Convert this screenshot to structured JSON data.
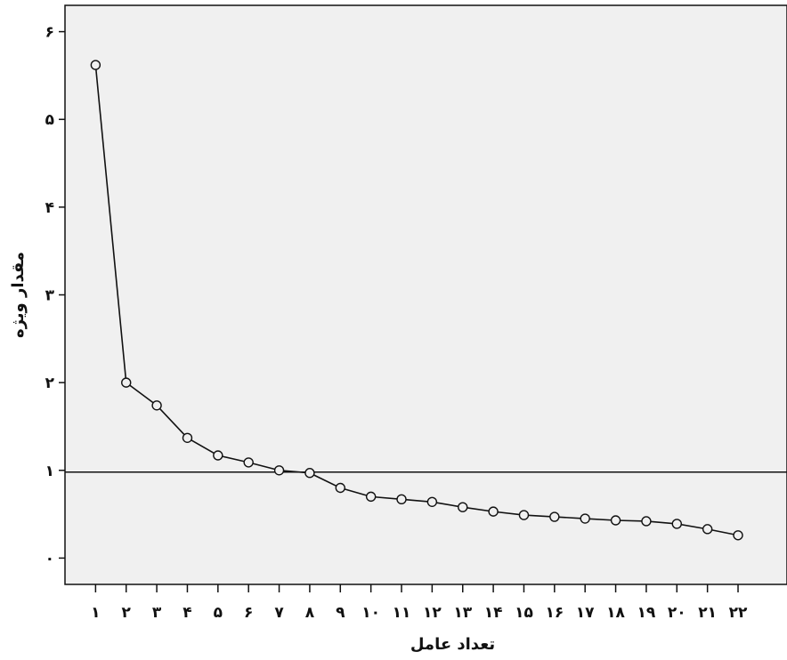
{
  "chart_data": {
    "type": "line",
    "xlabel": "تعداد عامل",
    "ylabel": "مقدار ویژه",
    "x_tick_labels": [
      "۱",
      "۲",
      "۳",
      "۴",
      "۵",
      "۶",
      "۷",
      "۸",
      "۹",
      "۱۰",
      "۱۱",
      "۱۲",
      "۱۳",
      "۱۴",
      "۱۵",
      "۱۶",
      "۱۷",
      "۱۸",
      "۱۹",
      "۲۰",
      "۲۱",
      "۲۲"
    ],
    "y_tick_labels": [
      "۰",
      "۱",
      "۲",
      "۳",
      "۴",
      "۵",
      "۶"
    ],
    "y_ticks": [
      0,
      1,
      2,
      3,
      4,
      5,
      6
    ],
    "xlim": [
      0.0,
      23.6
    ],
    "ylim": [
      -0.3,
      6.3
    ],
    "x": [
      1,
      2,
      3,
      4,
      5,
      6,
      7,
      8,
      9,
      10,
      11,
      12,
      13,
      14,
      15,
      16,
      17,
      18,
      19,
      20,
      21,
      22
    ],
    "series": [
      {
        "values": [
          5.62,
          2.0,
          1.74,
          1.37,
          1.17,
          1.09,
          1.0,
          0.97,
          0.8,
          0.7,
          0.67,
          0.64,
          0.58,
          0.53,
          0.49,
          0.47,
          0.45,
          0.43,
          0.42,
          0.39,
          0.33,
          0.26
        ]
      }
    ],
    "reference_lines": [
      {
        "orientation": "horizontal",
        "y": 0.98
      }
    ],
    "grid": false,
    "legend": false,
    "colors": {
      "plot_background": "#f0f0f0",
      "line": "#111111",
      "marker_stroke": "#111111",
      "marker_fill": "#f0f0f0",
      "axis": "#111111"
    }
  }
}
